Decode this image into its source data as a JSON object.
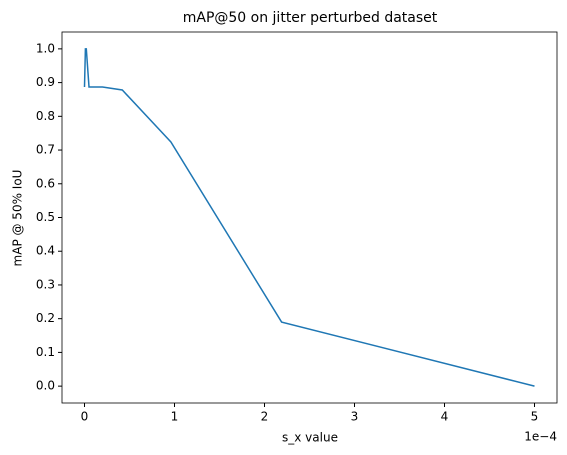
{
  "chart_data": {
    "type": "line",
    "title": "mAP@50 on jitter perturbed dataset",
    "x_label": "s_x value",
    "y_label": "mAP @ 50% IoU",
    "x_offset_label": "1e−4",
    "x": [
      0,
      0.01,
      0.02,
      0.05,
      0.1,
      0.2,
      0.42,
      0.96,
      2.19,
      5.0
    ],
    "series": [
      {
        "name": "mAP@50",
        "color": "#1f77b4",
        "values": [
          0.887,
          1.0,
          1.0,
          0.887,
          0.887,
          0.887,
          0.878,
          0.724,
          0.19,
          0.0
        ]
      }
    ],
    "xlim": [
      -0.25,
      5.25
    ],
    "ylim": [
      -0.05,
      1.05
    ],
    "xticks": [
      0,
      1,
      2,
      3,
      4,
      5
    ],
    "yticks": [
      {
        "value": 0.0,
        "label": "0.0"
      },
      0.1,
      0.2,
      0.3,
      0.4,
      0.5,
      0.6,
      0.7,
      0.8,
      0.9,
      {
        "value": 1.0,
        "label": "1.0"
      }
    ],
    "grid": false
  }
}
